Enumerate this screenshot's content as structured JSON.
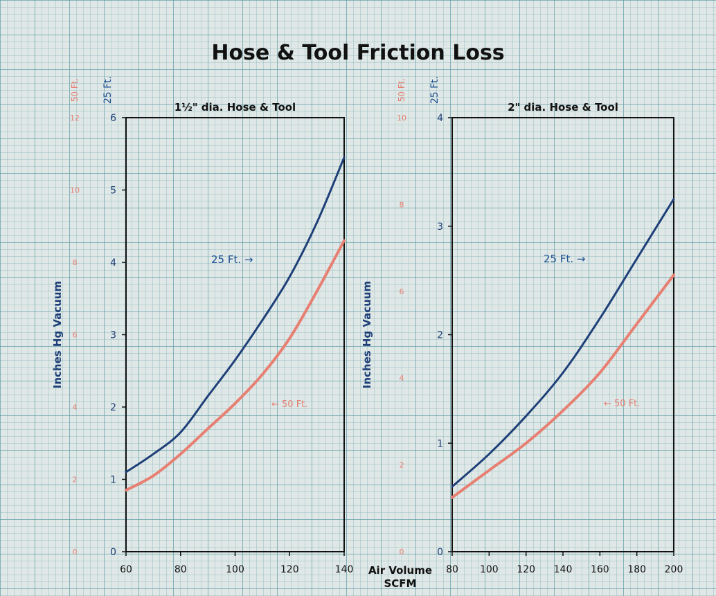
{
  "title": "Hose & Tool Friction Loss",
  "x_label_line1": "Air Volume",
  "x_label_line2": "SCFM",
  "colors": {
    "blue": "#1e3f78",
    "red": "#e77f72",
    "frame": "#111111"
  },
  "chart_data": [
    {
      "type": "line",
      "title": "1½\" dia. Hose & Tool",
      "ylabel": "Inches Hg Vacuum",
      "xlim": [
        60,
        140
      ],
      "ylim": [
        0,
        6
      ],
      "x_ticks": [
        "60",
        "80",
        "100",
        "120",
        "140"
      ],
      "y_ticks": [
        "0",
        "1",
        "2",
        "3",
        "4",
        "5",
        "6"
      ],
      "secondary_y_header": "50 Ft.",
      "secondary_y_ticks": [
        "0",
        "2",
        "4",
        "6",
        "8",
        "10",
        "12"
      ],
      "series": [
        {
          "name": "25 Ft.",
          "label": "25 Ft. →",
          "color": "#1e3f78",
          "x": [
            60,
            70,
            80,
            90,
            100,
            110,
            120,
            130,
            140
          ],
          "y": [
            1.1,
            1.35,
            1.65,
            2.15,
            2.65,
            3.2,
            3.8,
            4.55,
            5.45
          ]
        },
        {
          "name": "50 Ft.",
          "label": "← 50 Ft.",
          "color": "#e77f72",
          "x": [
            60,
            70,
            80,
            90,
            100,
            110,
            120,
            130,
            140
          ],
          "y": [
            0.85,
            1.05,
            1.35,
            1.7,
            2.05,
            2.45,
            2.95,
            3.6,
            4.3
          ]
        }
      ],
      "primary_y_header": "25 Ft."
    },
    {
      "type": "line",
      "title": "2\" dia. Hose & Tool",
      "ylabel": "Inches Hg Vacuum",
      "xlim": [
        80,
        200
      ],
      "ylim": [
        0,
        4
      ],
      "x_ticks": [
        "80",
        "100",
        "120",
        "140",
        "160",
        "180",
        "200"
      ],
      "y_ticks": [
        "0",
        "1",
        "2",
        "3",
        "4"
      ],
      "secondary_y_header": "50 Ft.",
      "secondary_y_ticks": [
        "0",
        "2",
        "4",
        "6",
        "8",
        "10"
      ],
      "series": [
        {
          "name": "25 Ft.",
          "label": "25 Ft. →",
          "color": "#1e3f78",
          "x": [
            80,
            100,
            120,
            140,
            160,
            180,
            200
          ],
          "y": [
            0.6,
            0.9,
            1.25,
            1.65,
            2.15,
            2.7,
            3.25
          ]
        },
        {
          "name": "50 Ft.",
          "label": "← 50 Ft.",
          "color": "#e77f72",
          "x": [
            80,
            100,
            120,
            140,
            160,
            180,
            200
          ],
          "y": [
            0.5,
            0.75,
            1.0,
            1.3,
            1.65,
            2.1,
            2.55
          ]
        }
      ],
      "primary_y_header": "25 Ft."
    }
  ]
}
